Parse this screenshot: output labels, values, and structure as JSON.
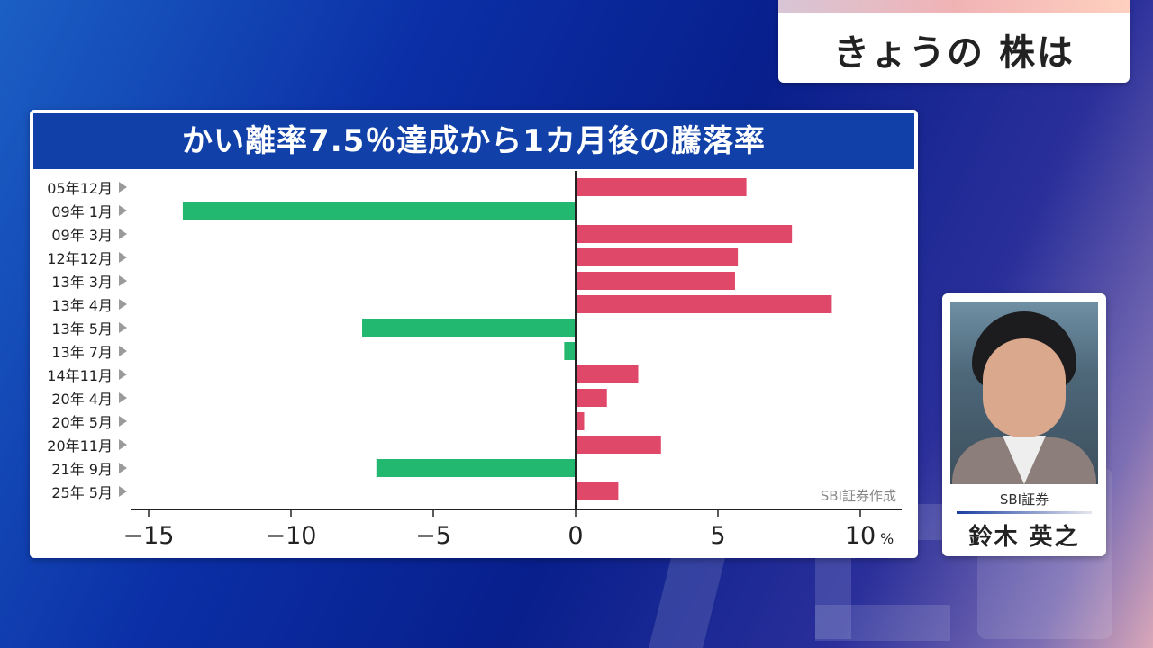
{
  "program": {
    "title": "きょうの 株は"
  },
  "chart_data": {
    "type": "bar",
    "orientation": "horizontal",
    "title": "かい離率7.5％達成から1カ月後の騰落率",
    "categories": [
      "05年12月",
      "09年 1月",
      "09年 3月",
      "12年12月",
      "13年 3月",
      "13年 4月",
      "13年 5月",
      "13年 7月",
      "14年11月",
      "20年 4月",
      "20年 5月",
      "20年11月",
      "21年 9月",
      "25年 5月"
    ],
    "values": [
      6.0,
      -13.8,
      7.6,
      5.7,
      5.6,
      9.0,
      -7.5,
      -0.4,
      2.2,
      1.1,
      0.3,
      3.0,
      -7.0,
      1.5
    ],
    "xlim": [
      -15,
      10
    ],
    "ticks": [
      -15,
      -10,
      -5,
      0,
      5,
      10
    ],
    "tick_labels": [
      "−15",
      "−10",
      "−5",
      "0",
      "5",
      "10"
    ],
    "unit": "%",
    "source": "SBI証券作成",
    "positive_color": "#e0486a",
    "negative_color": "#23b86f",
    "grid": false
  },
  "presenter": {
    "company": "SBI証券",
    "name": "鈴木 英之"
  }
}
